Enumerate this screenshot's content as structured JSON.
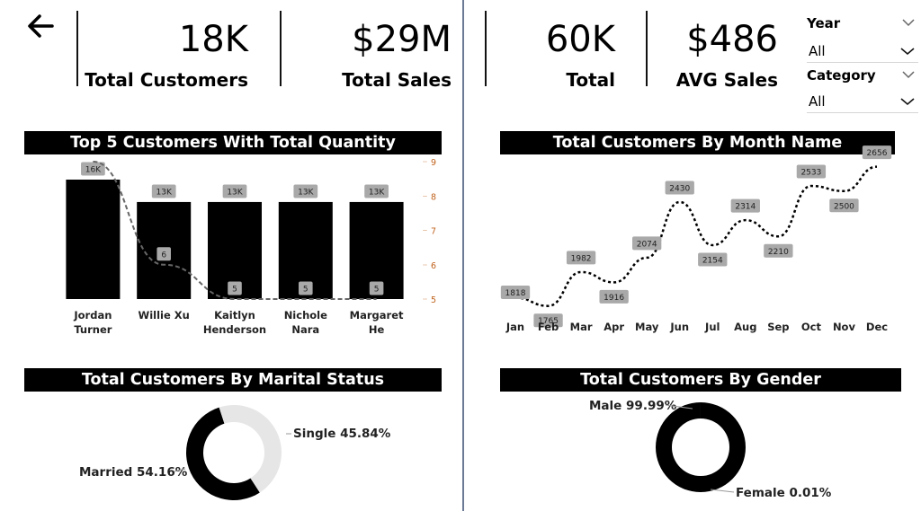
{
  "kpis": [
    {
      "value": "18K",
      "label": "Total Customers"
    },
    {
      "value": "$29M",
      "label": "Total Sales"
    },
    {
      "value": "60K",
      "label": "Total"
    },
    {
      "value": "$486",
      "label": "AVG Sales"
    }
  ],
  "slicers": {
    "year": {
      "title": "Year",
      "value": "All"
    },
    "category": {
      "title": "Category",
      "value": "All"
    }
  },
  "titles": {
    "top5": "Top 5 Customers With Total Quantity",
    "month": "Total Customers By Month Name",
    "marital": "Total Customers By Marital Status",
    "gender": "Total Customers By Gender"
  },
  "chart_data": [
    {
      "type": "bar",
      "title": "Top 5 Customers With Total Quantity",
      "categories": [
        "Jordan Turner",
        "Willie Xu",
        "Kaitlyn Henderson",
        "Nichole Nara",
        "Margaret He"
      ],
      "series": [
        {
          "values": [
            16000,
            13000,
            13000,
            13000,
            13000
          ],
          "data_labels": [
            "16K",
            "13K",
            "13K",
            "13K",
            "13K"
          ],
          "color": "#000000"
        },
        {
          "values": [
            9,
            6,
            5,
            5,
            5
          ],
          "data_labels": [
            "9",
            "6",
            "5",
            "5",
            "5"
          ],
          "style": "dashed-line",
          "color": "#666666",
          "axis": "secondary"
        }
      ],
      "y2_ticks": [
        "9",
        "8",
        "7",
        "6",
        "5"
      ],
      "y2lim": [
        5,
        9
      ],
      "grid": false
    },
    {
      "type": "line",
      "title": "Total Customers By Month Name",
      "categories": [
        "Jan",
        "Feb",
        "Mar",
        "Apr",
        "May",
        "Jun",
        "Jul",
        "Aug",
        "Sep",
        "Oct",
        "Nov",
        "Dec"
      ],
      "series": [
        {
          "values": [
            1818,
            1765,
            1982,
            1916,
            2074,
            2430,
            2154,
            2314,
            2210,
            2533,
            2500,
            2656
          ],
          "style": "dotted",
          "color": "#000000"
        }
      ],
      "grid": false
    },
    {
      "type": "pie",
      "variant": "donut",
      "title": "Total Customers By Marital Status",
      "slices": [
        {
          "label": "Married",
          "percent": 54.16,
          "display": "Married 54.16%",
          "color": "#000000"
        },
        {
          "label": "Single",
          "percent": 45.84,
          "display": "Single 45.84%",
          "color": "#e6e6e6"
        }
      ]
    },
    {
      "type": "pie",
      "variant": "donut",
      "title": "Total Customers By Gender",
      "slices": [
        {
          "label": "Male",
          "percent": 99.99,
          "display": "Male 99.99%",
          "color": "#000000"
        },
        {
          "label": "Female",
          "percent": 0.01,
          "display": "Female 0.01%",
          "color": "#cccccc"
        }
      ]
    }
  ]
}
